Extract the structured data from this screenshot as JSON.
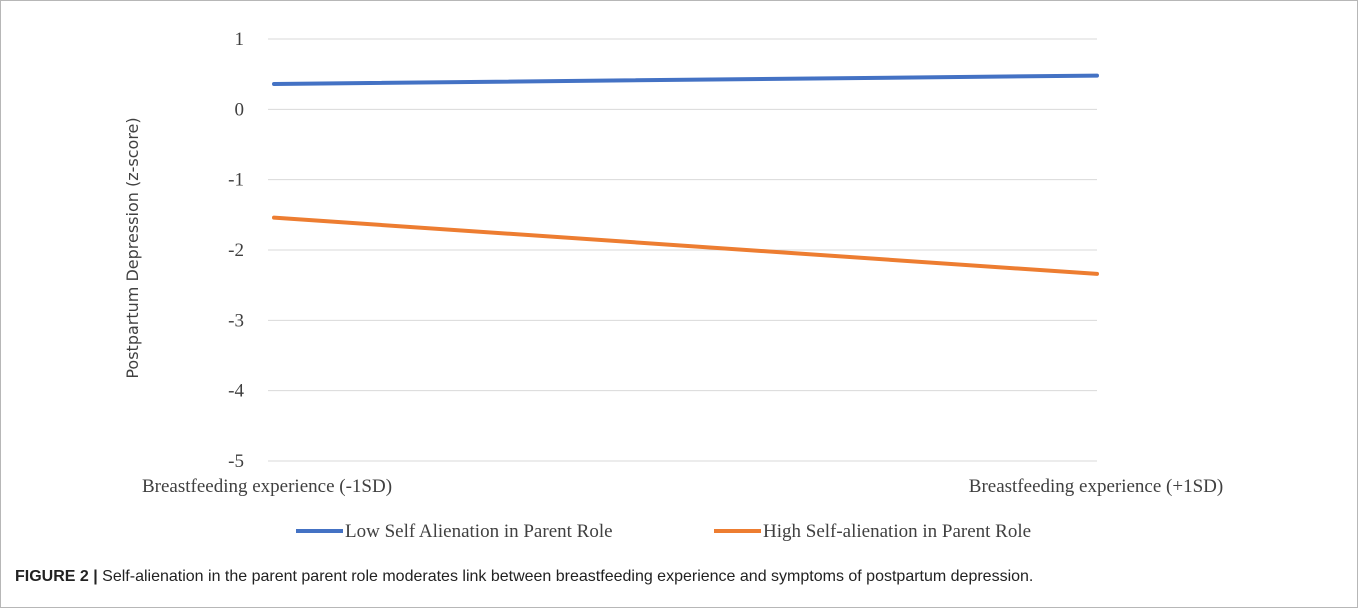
{
  "chart_data": {
    "type": "line",
    "ylabel": "Postpartum Depression (z-score)",
    "xlabel": "",
    "x": [
      "Breastfeeding experience (-1SD)",
      "Breastfeeding experience (+1SD)"
    ],
    "ylim": [
      -5,
      1
    ],
    "yticks": [
      "1",
      "0",
      "-1",
      "-2",
      "-3",
      "-4",
      "-5"
    ],
    "grid": "horizontal",
    "legend_position": "bottom",
    "series": [
      {
        "name": "Low Self Alienation in Parent Role",
        "values": [
          0.36,
          0.48
        ],
        "color": "#4472c4"
      },
      {
        "name": "High Self-alienation in Parent Role",
        "values": [
          -1.54,
          -2.34
        ],
        "color": "#ed7d31"
      }
    ]
  },
  "caption": {
    "label": "FIGURE 2 |",
    "text": " Self-alienation in the parent parent role moderates link between breastfeeding experience and symptoms of postpartum depression."
  }
}
